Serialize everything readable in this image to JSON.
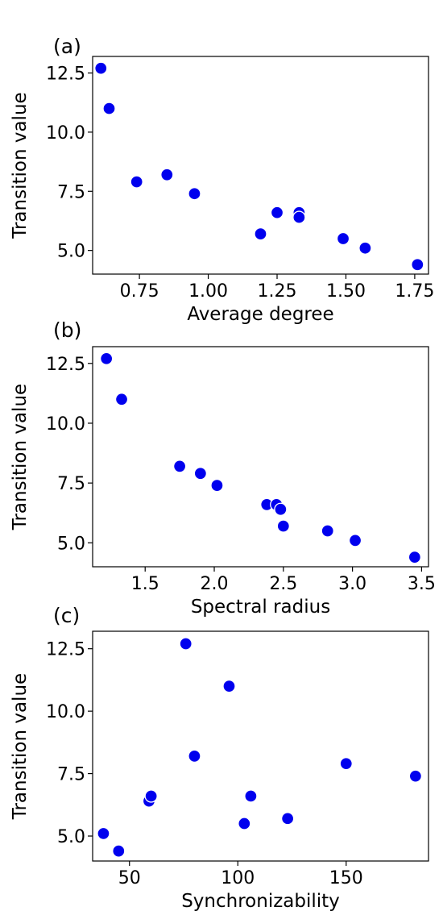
{
  "chart_data": [
    {
      "type": "scatter",
      "panel_label": "(a)",
      "xlabel": "Average degree",
      "ylabel": "Transition value",
      "xlim": [
        0.58,
        1.8
      ],
      "ylim": [
        4.0,
        13.2
      ],
      "xticks": [
        0.75,
        1.0,
        1.25,
        1.5,
        1.75
      ],
      "xtick_labels": [
        "0.75",
        "1.00",
        "1.25",
        "1.50",
        "1.75"
      ],
      "yticks": [
        5.0,
        7.5,
        10.0,
        12.5
      ],
      "ytick_labels": [
        "5.0",
        "7.5",
        "10.0",
        "12.5"
      ],
      "marker_color": "#0000ee",
      "points": [
        {
          "x": 0.61,
          "y": 12.7
        },
        {
          "x": 0.64,
          "y": 11.0
        },
        {
          "x": 0.74,
          "y": 7.9
        },
        {
          "x": 0.85,
          "y": 8.2
        },
        {
          "x": 0.95,
          "y": 7.4
        },
        {
          "x": 1.19,
          "y": 5.7
        },
        {
          "x": 1.25,
          "y": 6.6
        },
        {
          "x": 1.33,
          "y": 6.6
        },
        {
          "x": 1.33,
          "y": 6.4
        },
        {
          "x": 1.49,
          "y": 5.5
        },
        {
          "x": 1.57,
          "y": 5.1
        },
        {
          "x": 1.76,
          "y": 4.4
        }
      ]
    },
    {
      "type": "scatter",
      "panel_label": "(b)",
      "xlabel": "Spectral radius",
      "ylabel": "Transition value",
      "xlim": [
        1.12,
        3.55
      ],
      "ylim": [
        4.0,
        13.2
      ],
      "xticks": [
        1.5,
        2.0,
        2.5,
        3.0,
        3.5
      ],
      "xtick_labels": [
        "1.5",
        "2.0",
        "2.5",
        "3.0",
        "3.5"
      ],
      "yticks": [
        5.0,
        7.5,
        10.0,
        12.5
      ],
      "ytick_labels": [
        "5.0",
        "7.5",
        "10.0",
        "12.5"
      ],
      "marker_color": "#0000ee",
      "points": [
        {
          "x": 1.22,
          "y": 12.7
        },
        {
          "x": 1.33,
          "y": 11.0
        },
        {
          "x": 1.75,
          "y": 8.2
        },
        {
          "x": 1.9,
          "y": 7.9
        },
        {
          "x": 2.02,
          "y": 7.4
        },
        {
          "x": 2.38,
          "y": 6.6
        },
        {
          "x": 2.45,
          "y": 6.6
        },
        {
          "x": 2.48,
          "y": 6.4
        },
        {
          "x": 2.5,
          "y": 5.7
        },
        {
          "x": 2.82,
          "y": 5.5
        },
        {
          "x": 3.02,
          "y": 5.1
        },
        {
          "x": 3.45,
          "y": 4.4
        }
      ]
    },
    {
      "type": "scatter",
      "panel_label": "(c)",
      "xlabel": "Synchronizability",
      "ylabel": "Transition value",
      "xlim": [
        33,
        188
      ],
      "ylim": [
        4.0,
        13.2
      ],
      "xticks": [
        50,
        100,
        150
      ],
      "xtick_labels": [
        "50",
        "100",
        "150"
      ],
      "yticks": [
        5.0,
        7.5,
        10.0,
        12.5
      ],
      "ytick_labels": [
        "5.0",
        "7.5",
        "10.0",
        "12.5"
      ],
      "marker_color": "#0000ee",
      "points": [
        {
          "x": 38,
          "y": 5.1
        },
        {
          "x": 45,
          "y": 4.4
        },
        {
          "x": 59,
          "y": 6.4
        },
        {
          "x": 60,
          "y": 6.6
        },
        {
          "x": 76,
          "y": 12.7
        },
        {
          "x": 80,
          "y": 8.2
        },
        {
          "x": 96,
          "y": 11.0
        },
        {
          "x": 103,
          "y": 5.5
        },
        {
          "x": 106,
          "y": 6.6
        },
        {
          "x": 123,
          "y": 5.7
        },
        {
          "x": 150,
          "y": 7.9
        },
        {
          "x": 182,
          "y": 7.4
        }
      ]
    }
  ]
}
